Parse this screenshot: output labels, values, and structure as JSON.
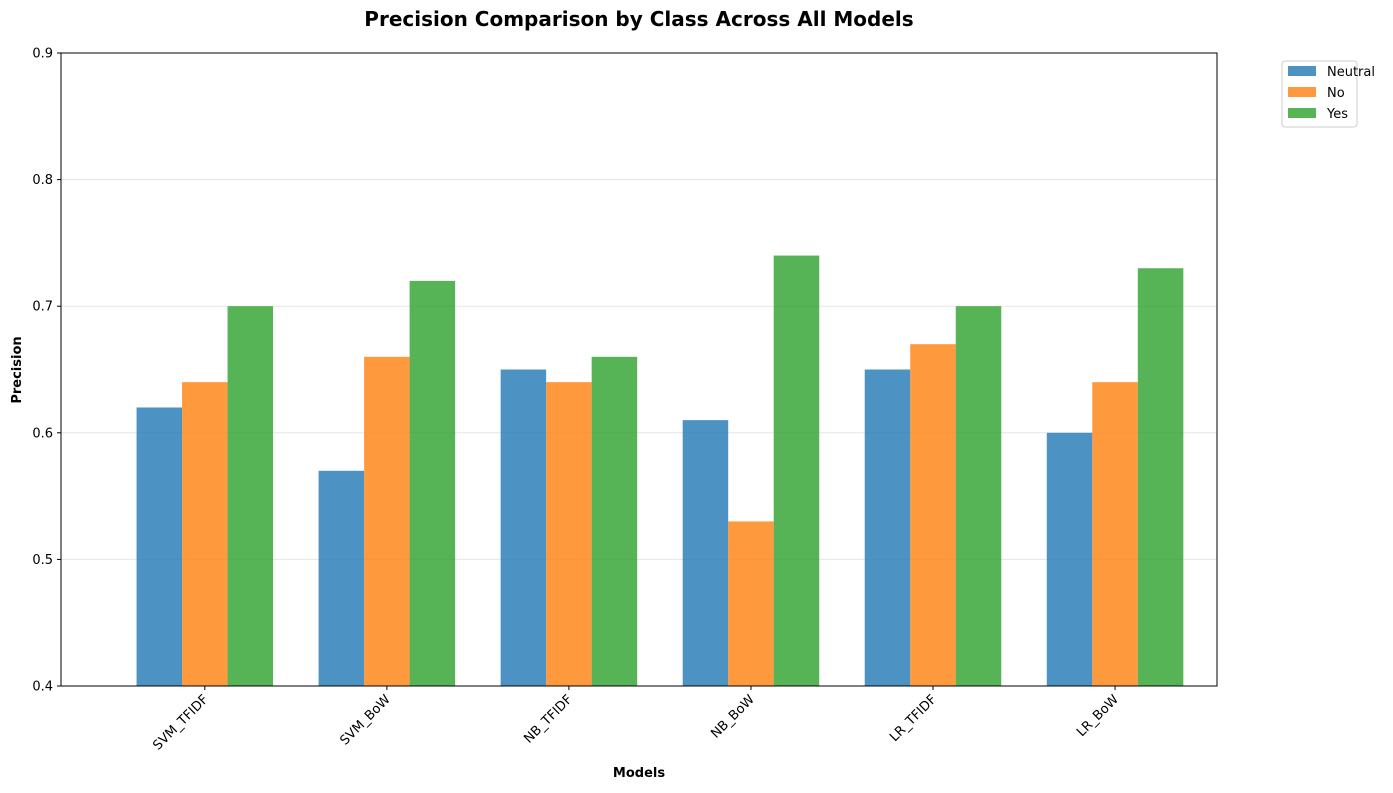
{
  "chart_data": {
    "type": "bar",
    "title": "Precision Comparison by Class Across All Models",
    "xlabel": "Models",
    "ylabel": "Precision",
    "ylim": [
      0.4,
      0.9
    ],
    "yticks": [
      "0.4",
      "0.5",
      "0.6",
      "0.7",
      "0.8",
      "0.9"
    ],
    "grid": "y",
    "legend_position": "outside-top-right",
    "categories": [
      "SVM_TFIDF",
      "SVM_BoW",
      "NB_TFIDF",
      "NB_BoW",
      "LR_TFIDF",
      "LR_BoW"
    ],
    "series": [
      {
        "name": "Neutral",
        "color": "#1f77b4",
        "values": [
          0.62,
          0.57,
          0.65,
          0.61,
          0.65,
          0.6
        ]
      },
      {
        "name": "No",
        "color": "#ff7f0e",
        "values": [
          0.64,
          0.66,
          0.64,
          0.53,
          0.67,
          0.64
        ]
      },
      {
        "name": "Yes",
        "color": "#2ca02c",
        "values": [
          0.7,
          0.72,
          0.66,
          0.74,
          0.7,
          0.73
        ]
      }
    ]
  }
}
